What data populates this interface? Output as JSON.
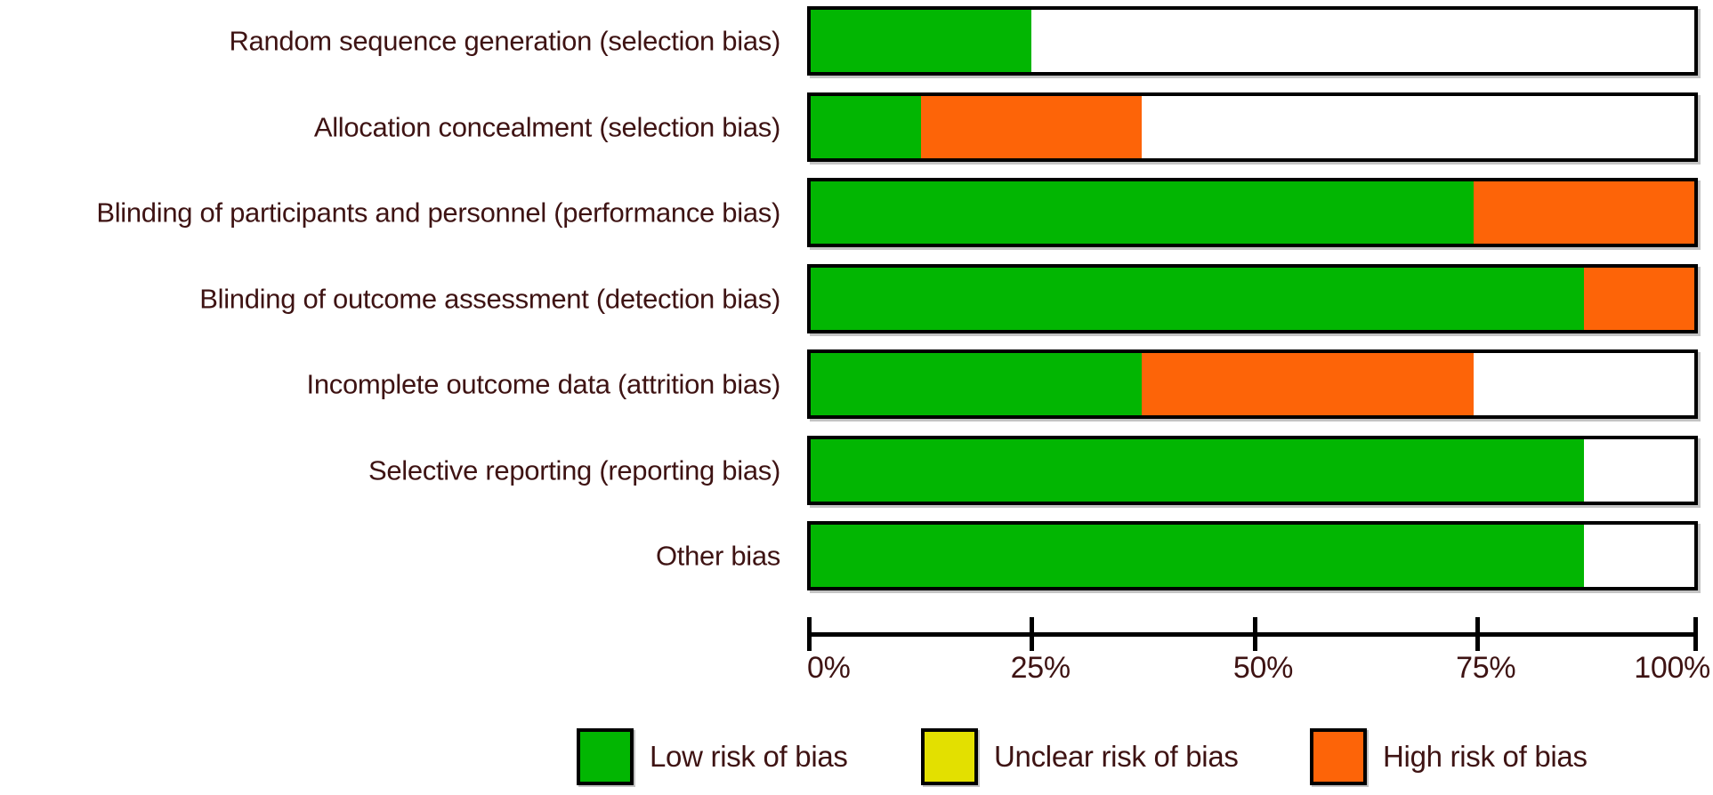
{
  "chart_data": {
    "type": "bar",
    "orientation": "horizontal_stacked",
    "categories": [
      "Random sequence generation (selection bias)",
      "Allocation concealment (selection bias)",
      "Blinding of participants and personnel (performance bias)",
      "Blinding of outcome assessment (detection bias)",
      "Incomplete outcome data (attrition bias)",
      "Selective reporting (reporting bias)",
      "Other bias"
    ],
    "series": [
      {
        "name": "Low risk of bias",
        "color": "#02b602",
        "values": [
          25,
          12.5,
          75,
          87.5,
          37.5,
          87.5,
          87.5
        ]
      },
      {
        "name": "Unclear risk of bias",
        "color": "#e3e000",
        "values": [
          0,
          0,
          0,
          0,
          0,
          0,
          0
        ]
      },
      {
        "name": "High risk of bias",
        "color": "#fd6408",
        "values": [
          0,
          25,
          25,
          12.5,
          37.5,
          0,
          0
        ]
      }
    ],
    "x_ticks": [
      "0%",
      "25%",
      "50%",
      "75%",
      "100%"
    ],
    "x_tick_values": [
      0,
      25,
      50,
      75,
      100
    ],
    "xlim": [
      0,
      100
    ],
    "grid": false,
    "legend_position": "bottom",
    "bar_background": "#ffffff",
    "bar_border_color": "#000000",
    "text_color": "#3e1313"
  }
}
